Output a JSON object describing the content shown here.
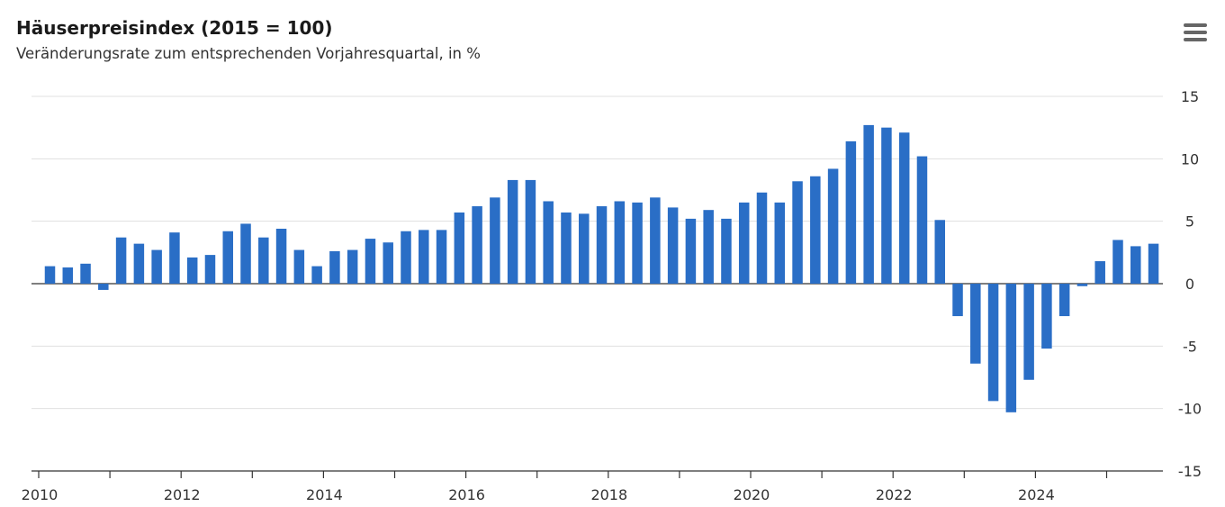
{
  "header": {
    "title": "Häuserpreisindex (2015 = 100)",
    "subtitle": "Veränderungsrate zum entsprechenden Vorjahresquartal, in %"
  },
  "menu": {
    "icon": "hamburger-menu-icon"
  },
  "colors": {
    "bar": "#2a6ec6",
    "grid": "#e0e0e0",
    "axis": "#333333"
  },
  "chart_data": {
    "type": "bar",
    "title": "Häuserpreisindex (2015 = 100)",
    "subtitle": "Veränderungsrate zum entsprechenden Vorjahresquartal, in %",
    "xlabel": "",
    "ylabel": "",
    "ylim": [
      -15,
      15
    ],
    "yticks": [
      15,
      10,
      5,
      0,
      -5,
      -10,
      -15
    ],
    "xticks": [
      "2010",
      "2012",
      "2014",
      "2016",
      "2018",
      "2020",
      "2022",
      "2024"
    ],
    "x_start_year": 2010,
    "y_axis_position": "right",
    "grid": true,
    "legend": false,
    "categories": [
      "2010 Q1",
      "2010 Q2",
      "2010 Q3",
      "2010 Q4",
      "2011 Q1",
      "2011 Q2",
      "2011 Q3",
      "2011 Q4",
      "2012 Q1",
      "2012 Q2",
      "2012 Q3",
      "2012 Q4",
      "2013 Q1",
      "2013 Q2",
      "2013 Q3",
      "2013 Q4",
      "2014 Q1",
      "2014 Q2",
      "2014 Q3",
      "2014 Q4",
      "2015 Q1",
      "2015 Q2",
      "2015 Q3",
      "2015 Q4",
      "2016 Q1",
      "2016 Q2",
      "2016 Q3",
      "2016 Q4",
      "2017 Q1",
      "2017 Q2",
      "2017 Q3",
      "2017 Q4",
      "2018 Q1",
      "2018 Q2",
      "2018 Q3",
      "2018 Q4",
      "2019 Q1",
      "2019 Q2",
      "2019 Q3",
      "2019 Q4",
      "2020 Q1",
      "2020 Q2",
      "2020 Q3",
      "2020 Q4",
      "2021 Q1",
      "2021 Q2",
      "2021 Q3",
      "2021 Q4",
      "2022 Q1",
      "2022 Q2",
      "2022 Q3",
      "2022 Q4",
      "2023 Q1",
      "2023 Q2",
      "2023 Q3",
      "2023 Q4",
      "2024 Q1",
      "2024 Q2",
      "2024 Q3",
      "2024 Q4",
      "2025 Q1",
      "2025 Q2",
      "2025 Q3"
    ],
    "values": [
      1.4,
      1.3,
      1.6,
      -0.5,
      3.7,
      3.2,
      2.7,
      4.1,
      2.1,
      2.3,
      4.2,
      4.8,
      3.7,
      4.4,
      2.7,
      1.4,
      2.6,
      2.7,
      3.6,
      3.3,
      4.2,
      4.3,
      4.3,
      5.7,
      6.2,
      6.9,
      8.3,
      8.3,
      6.6,
      5.7,
      5.6,
      6.2,
      6.6,
      6.5,
      6.9,
      6.1,
      5.2,
      5.9,
      5.2,
      6.5,
      7.3,
      6.5,
      8.2,
      8.6,
      9.2,
      11.4,
      12.7,
      12.5,
      12.1,
      10.2,
      5.1,
      -2.6,
      -6.4,
      -9.4,
      -10.3,
      -7.7,
      -5.2,
      -2.6,
      -0.2,
      1.8,
      3.5,
      3.0,
      3.2
    ]
  }
}
